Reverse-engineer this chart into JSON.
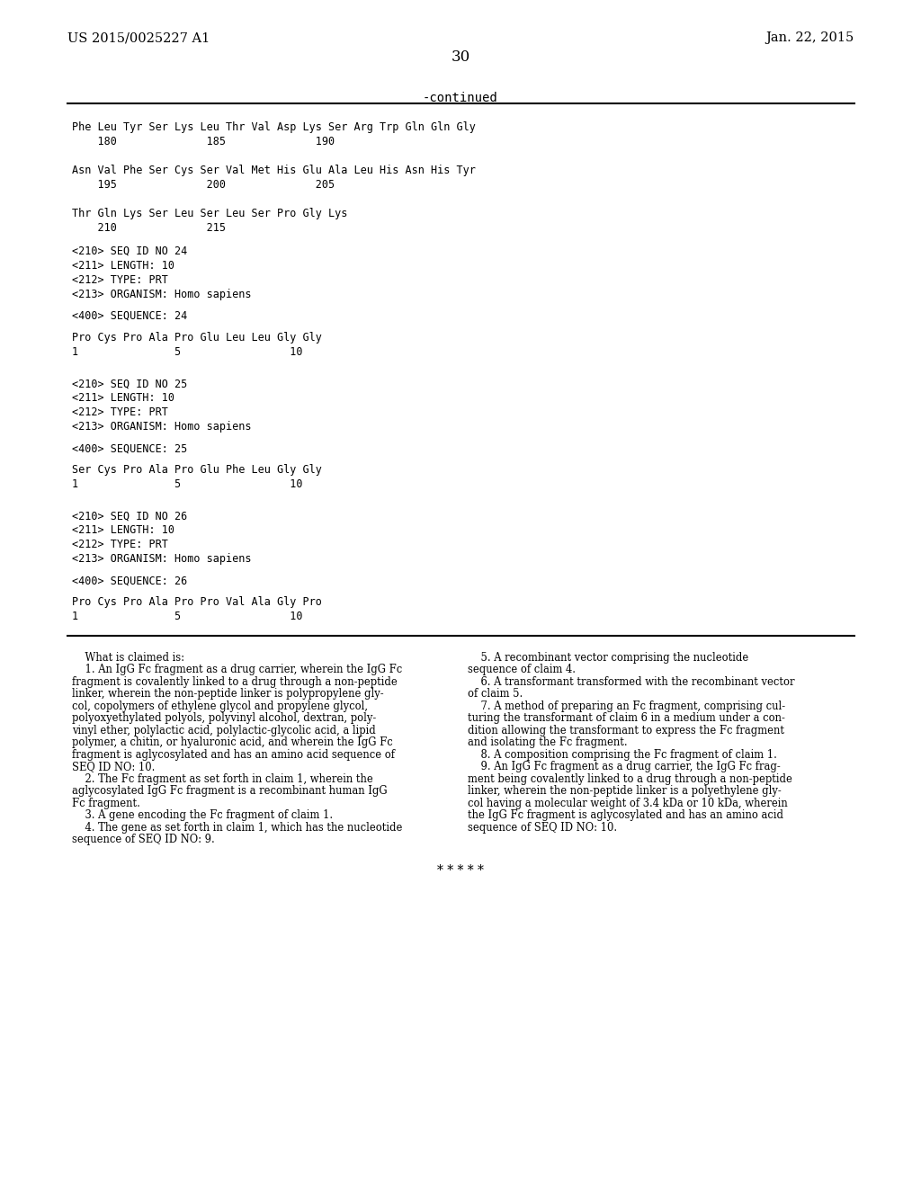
{
  "page_number": "30",
  "header_left": "US 2015/0025227 A1",
  "header_right": "Jan. 22, 2015",
  "continued_label": "-continued",
  "background_color": "#ffffff",
  "text_color": "#000000",
  "monospace_font": "DejaVu Sans Mono",
  "serif_font": "DejaVu Serif",
  "sequence_block": [
    "Phe Leu Tyr Ser Lys Leu Thr Val Asp Lys Ser Arg Trp Gln Gln Gly",
    "    180              185              190",
    "",
    "Asn Val Phe Ser Cys Ser Val Met His Glu Ala Leu His Asn His Tyr",
    "    195              200              205",
    "",
    "Thr Gln Lys Ser Leu Ser Leu Ser Pro Gly Lys",
    "    210              215"
  ],
  "seq_entries": [
    {
      "id_line": "<210> SEQ ID NO 24",
      "length_line": "<211> LENGTH: 10",
      "type_line": "<212> TYPE: PRT",
      "organism_line": "<213> ORGANISM: Homo sapiens",
      "sequence_label": "<400> SEQUENCE: 24",
      "sequence_data": "Pro Cys Pro Ala Pro Glu Leu Leu Gly Gly",
      "numbering": "1               5                 10"
    },
    {
      "id_line": "<210> SEQ ID NO 25",
      "length_line": "<211> LENGTH: 10",
      "type_line": "<212> TYPE: PRT",
      "organism_line": "<213> ORGANISM: Homo sapiens",
      "sequence_label": "<400> SEQUENCE: 25",
      "sequence_data": "Ser Cys Pro Ala Pro Glu Phe Leu Gly Gly",
      "numbering": "1               5                 10"
    },
    {
      "id_line": "<210> SEQ ID NO 26",
      "length_line": "<211> LENGTH: 10",
      "type_line": "<212> TYPE: PRT",
      "organism_line": "<213> ORGANISM: Homo sapiens",
      "sequence_label": "<400> SEQUENCE: 26",
      "sequence_data": "Pro Cys Pro Ala Pro Pro Val Ala Gly Pro",
      "numbering": "1               5                 10"
    }
  ],
  "claims_col1": [
    "    What is claimed is:",
    "    1. An IgG Fc fragment as a drug carrier, wherein the IgG Fc",
    "fragment is covalently linked to a drug through a non-peptide",
    "linker, wherein the non-peptide linker is polypropylene gly-",
    "col, copolymers of ethylene glycol and propylene glycol,",
    "polyoxyethylated polyols, polyvinyl alcohol, dextran, poly-",
    "vinyl ether, polylactic acid, polylactic-glycolic acid, a lipid",
    "polymer, a chitin, or hyaluronic acid, and wherein the IgG Fc",
    "fragment is aglycosylated and has an amino acid sequence of",
    "SEQ ID NO: 10.",
    "    2. The Fc fragment as set forth in claim 1, wherein the",
    "aglycosylated IgG Fc fragment is a recombinant human IgG",
    "Fc fragment.",
    "    3. A gene encoding the Fc fragment of claim 1.",
    "    4. The gene as set forth in claim 1, which has the nucleotide",
    "sequence of SEQ ID NO: 9."
  ],
  "claims_col2": [
    "    5. A recombinant vector comprising the nucleotide",
    "sequence of claim 4.",
    "    6. A transformant transformed with the recombinant vector",
    "of claim 5.",
    "    7. A method of preparing an Fc fragment, comprising cul-",
    "turing the transformant of claim 6 in a medium under a con-",
    "dition allowing the transformant to express the Fc fragment",
    "and isolating the Fc fragment.",
    "    8. A composition comprising the Fc fragment of claim 1.",
    "    9. An IgG Fc fragment as a drug carrier, the IgG Fc frag-",
    "ment being covalently linked to a drug through a non-peptide",
    "linker, wherein the non-peptide linker is a polyethylene gly-",
    "col having a molecular weight of 3.4 kDa or 10 kDa, wherein",
    "the IgG Fc fragment is aglycosylated and has an amino acid",
    "sequence of SEQ ID NO: 10.",
    "    9. An IgG Fc fragment as a drug carrier, the IgG Fc frag-"
  ],
  "asterisks": "* * * * *"
}
